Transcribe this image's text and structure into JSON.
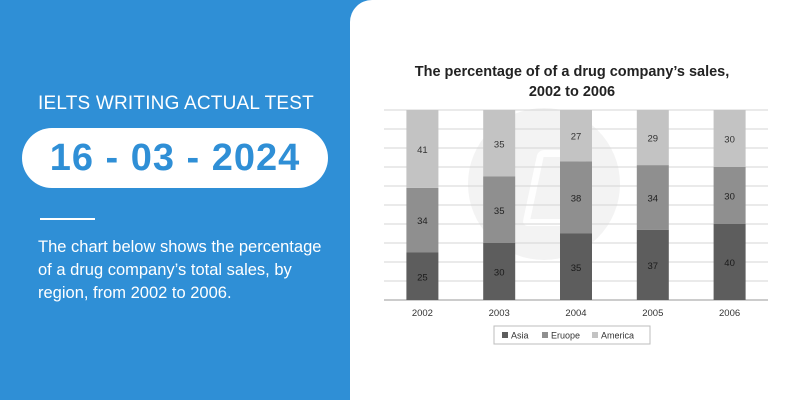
{
  "left_panel": {
    "kicker": "IELTS WRITING ACTUAL TEST",
    "date": "16 - 03 - 2024",
    "description": "The chart below shows the percentage of a drug company’s total sales, by region, from 2002 to 2006."
  },
  "colors": {
    "background": "#2f8fd6",
    "card": "#ffffff",
    "asia": "#5d5d5d",
    "europe": "#8f8f8f",
    "america": "#c3c3c3"
  },
  "chart_data": {
    "type": "bar",
    "stacked": true,
    "title": "The percentage of of a drug company’s sales,",
    "subtitle": "2002 to 2006",
    "categories": [
      "2002",
      "2003",
      "2004",
      "2005",
      "2006"
    ],
    "series": [
      {
        "name": "Asia",
        "values": [
          25,
          30,
          35,
          37,
          40
        ],
        "color": "#5d5d5d"
      },
      {
        "name": "Eruope",
        "values": [
          34,
          35,
          38,
          34,
          30
        ],
        "color": "#8f8f8f"
      },
      {
        "name": "America",
        "values": [
          41,
          35,
          27,
          29,
          30
        ],
        "color": "#c3c3c3"
      }
    ],
    "ylim": [
      0,
      100
    ],
    "grid": true,
    "legend_position": "bottom-center",
    "data_labels": true
  }
}
